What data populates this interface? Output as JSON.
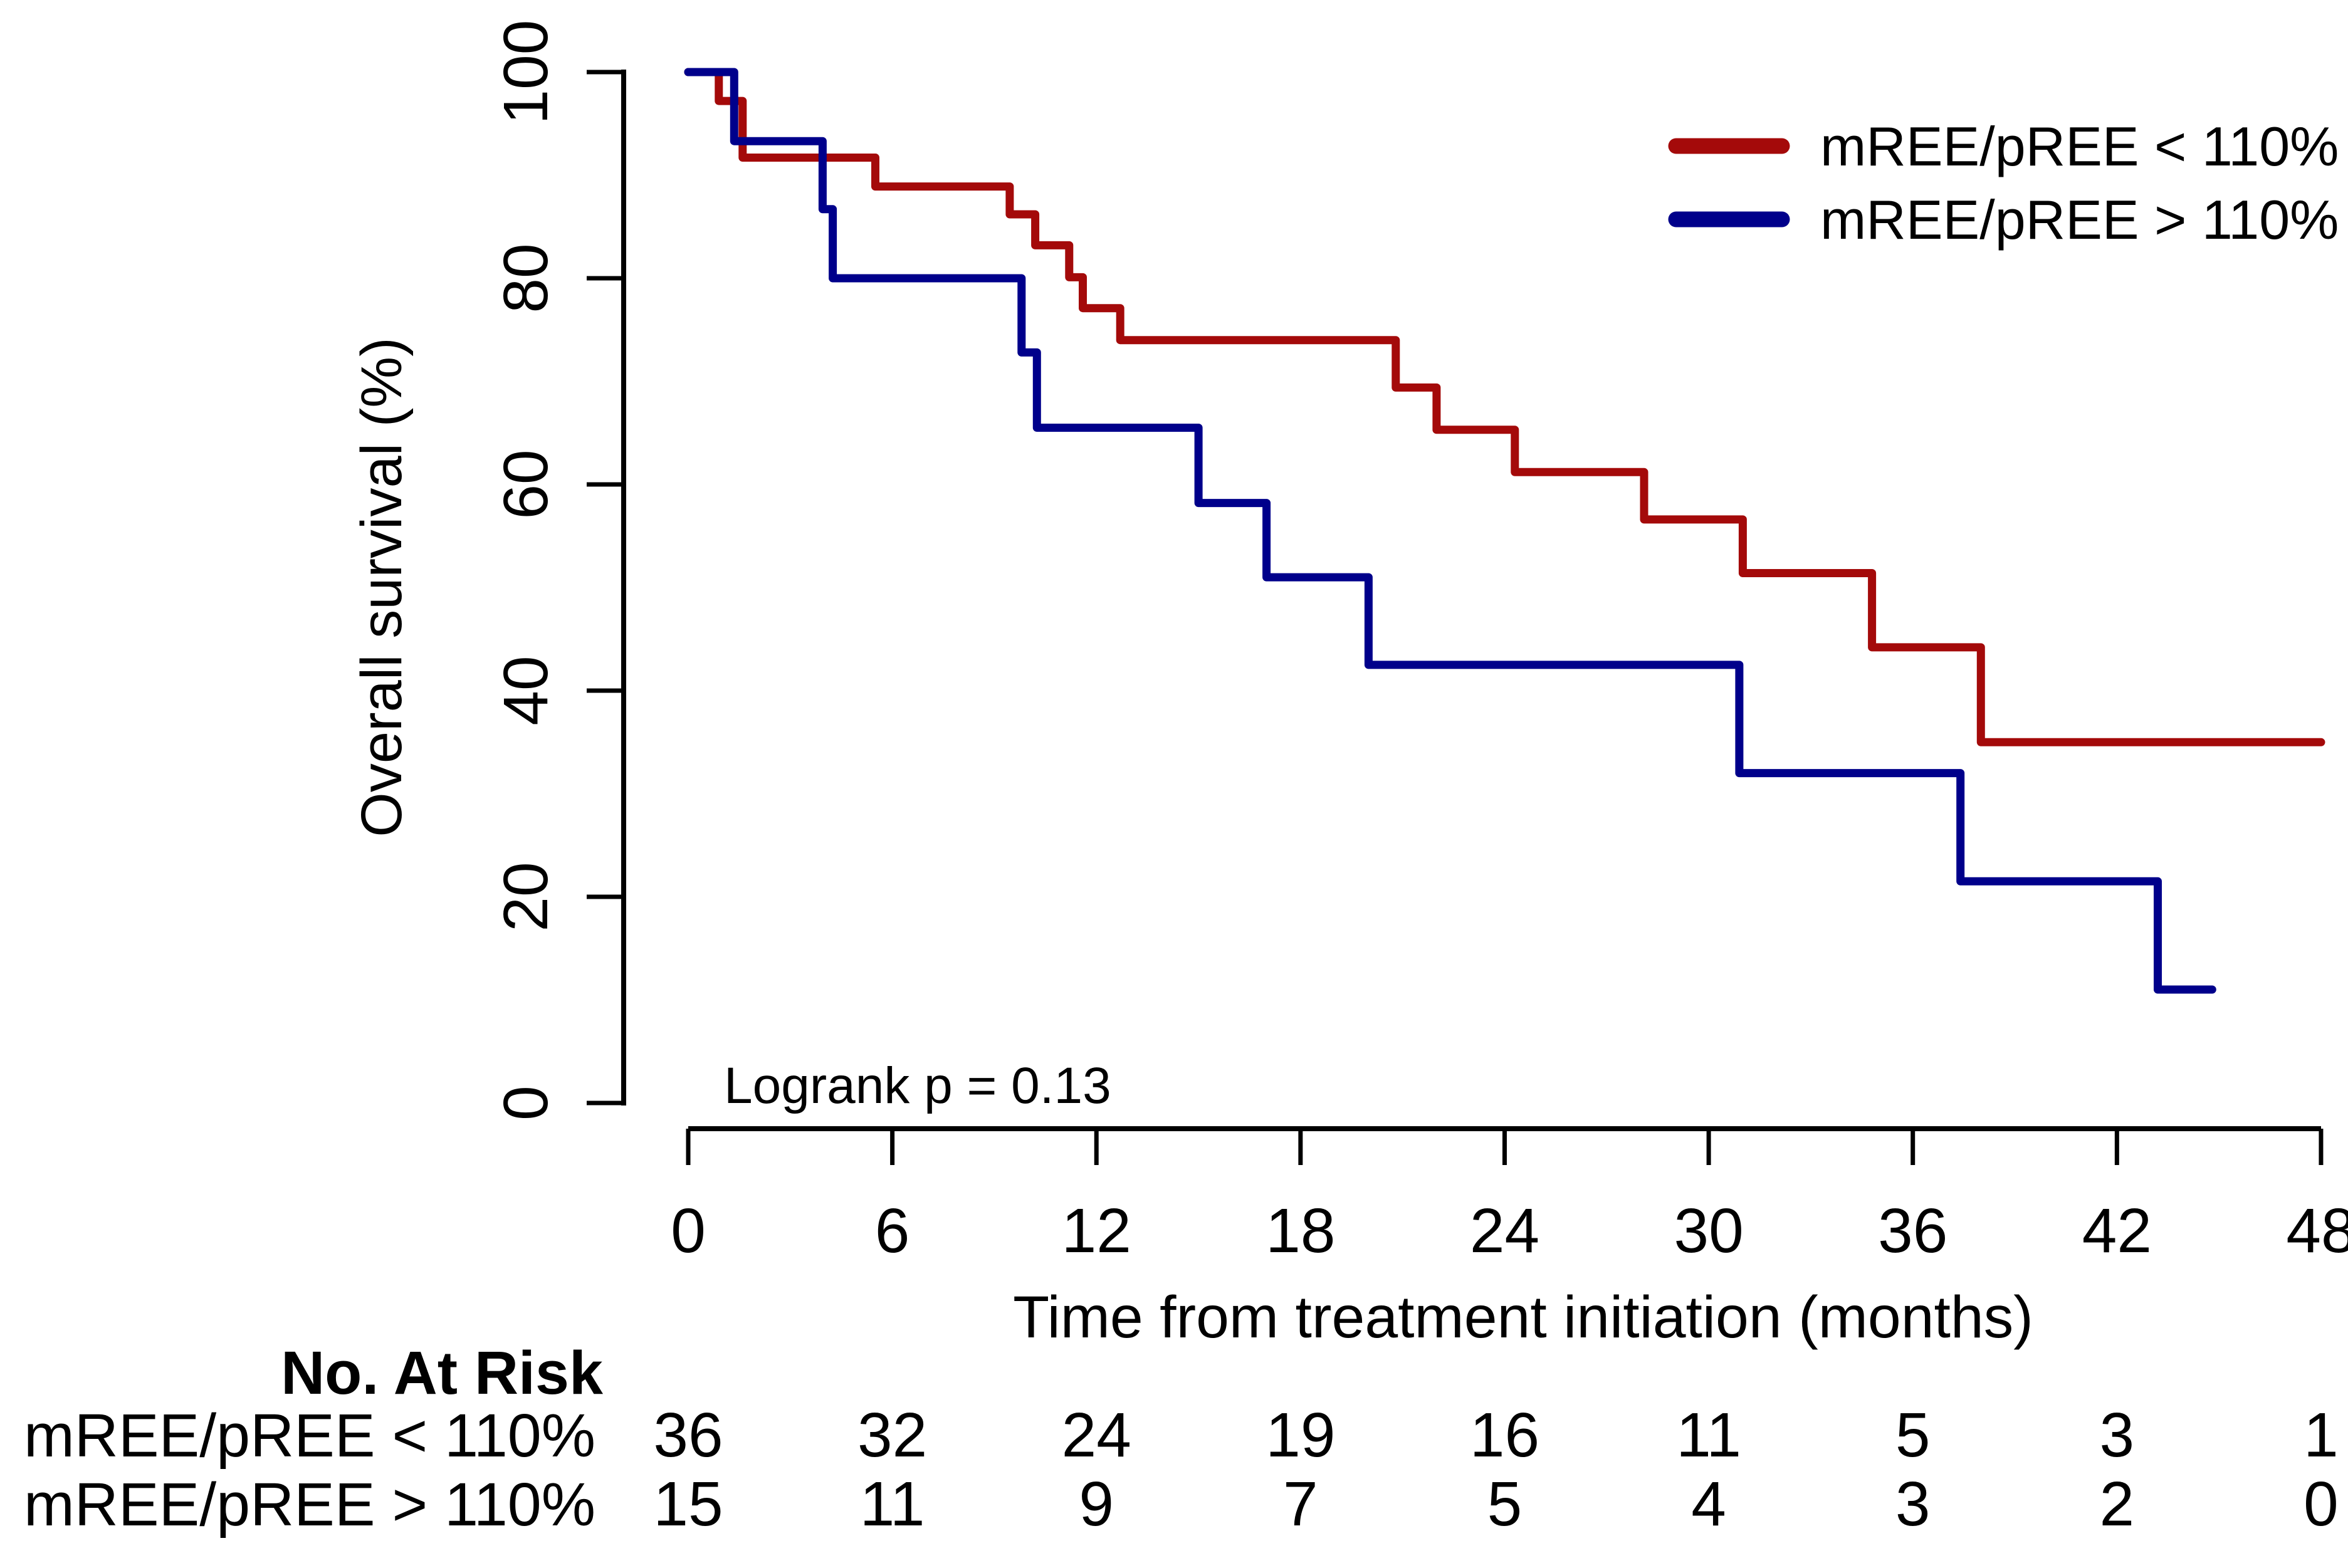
{
  "colors": {
    "red_series": "#A40A0A",
    "blue_series": "#00008B",
    "text": "#000000",
    "axis": "#000000",
    "background": "#FFFFFF"
  },
  "legend": {
    "items": [
      {
        "label": "mREE/pREE < 110%",
        "series": "red"
      },
      {
        "label": "mREE/pREE > 110%",
        "series": "blue"
      }
    ]
  },
  "annotation": {
    "logrank_label": "Logrank p = 0.13"
  },
  "axes": {
    "x": {
      "label": "Time from treatment initiation (months)",
      "ticks": [
        0,
        6,
        12,
        18,
        24,
        30,
        36,
        42,
        48
      ],
      "range": [
        0,
        48
      ]
    },
    "y": {
      "label": "Overall survival (%)",
      "ticks": [
        0,
        20,
        40,
        60,
        80,
        100
      ],
      "range": [
        0,
        100
      ]
    }
  },
  "chart_data": {
    "type": "line",
    "subtype": "kaplan-meier-step",
    "title": "",
    "xlabel": "Time from treatment initiation (months)",
    "ylabel": "Overall survival (%)",
    "xlim": [
      0,
      48
    ],
    "ylim": [
      0,
      100
    ],
    "grid": false,
    "legend_position": "top-right",
    "logrank_p": "0.13",
    "series": [
      {
        "name": "mREE/pREE < 110%",
        "color": "#A40A0A",
        "end_time": 48,
        "steps": [
          [
            0,
            100
          ],
          [
            0.9,
            97.2
          ],
          [
            1.6,
            91.7
          ],
          [
            5.5,
            88.9
          ],
          [
            9.45,
            86.2
          ],
          [
            10.2,
            83.2
          ],
          [
            11.2,
            80.1
          ],
          [
            11.6,
            77.1
          ],
          [
            12.7,
            74.0
          ],
          [
            20.8,
            69.4
          ],
          [
            22.0,
            65.3
          ],
          [
            24.3,
            61.2
          ],
          [
            28.1,
            56.6
          ],
          [
            31.0,
            51.4
          ],
          [
            34.8,
            44.2
          ],
          [
            38.0,
            35.0
          ]
        ]
      },
      {
        "name": "mREE/pREE > 110%",
        "color": "#00008B",
        "end_time": 44.8,
        "steps": [
          [
            0,
            100
          ],
          [
            1.35,
            93.3
          ],
          [
            3.95,
            86.7
          ],
          [
            4.25,
            80.0
          ],
          [
            9.8,
            72.8
          ],
          [
            10.25,
            65.5
          ],
          [
            15.0,
            58.2
          ],
          [
            17.0,
            51.0
          ],
          [
            20.0,
            42.5
          ],
          [
            30.9,
            32.0
          ],
          [
            37.4,
            21.5
          ],
          [
            43.2,
            11.0
          ]
        ]
      }
    ]
  },
  "risk_table": {
    "title": "No. At Risk",
    "time_points": [
      0,
      6,
      12,
      18,
      24,
      30,
      36,
      42,
      48
    ],
    "rows": [
      {
        "label": "mREE/pREE < 110%",
        "counts": [
          "36",
          "32",
          "24",
          "19",
          "16",
          "11",
          "5",
          "3",
          "1"
        ]
      },
      {
        "label": "mREE/pREE > 110%",
        "counts": [
          "15",
          "11",
          "9",
          "7",
          "5",
          "4",
          "3",
          "2",
          "0"
        ]
      }
    ]
  }
}
